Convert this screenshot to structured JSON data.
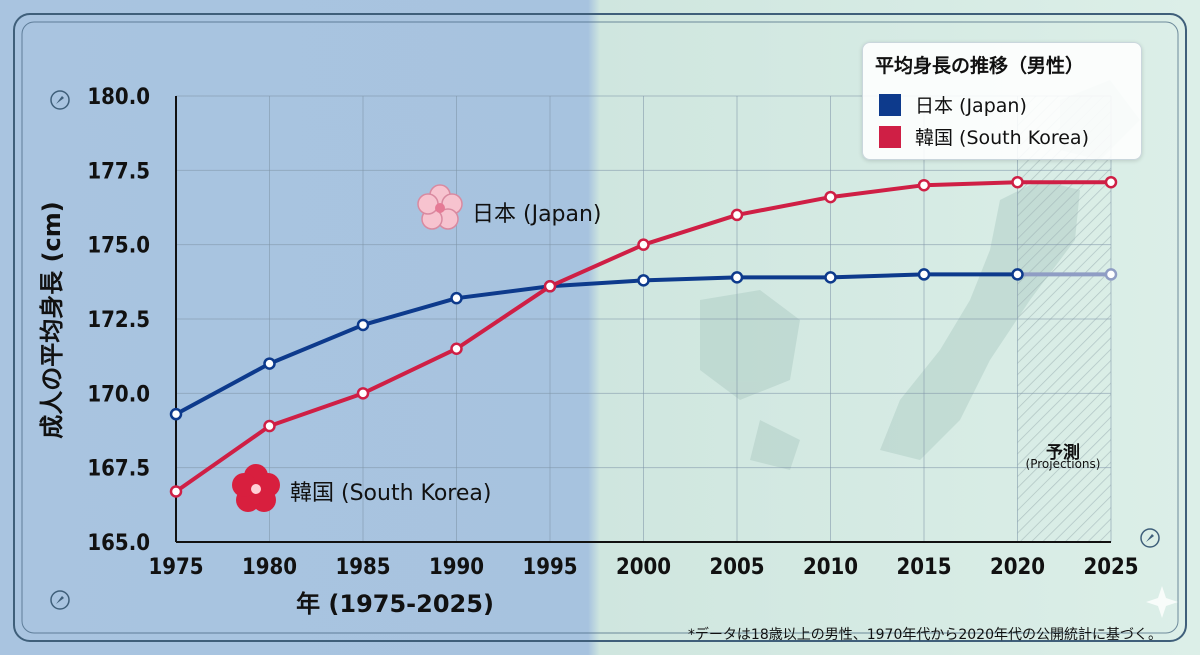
{
  "chart_data": {
    "type": "line",
    "title": "平均身長の推移（男性）",
    "xlabel": "年 (1975-2025)",
    "ylabel": "成人の平均身長 (cm)",
    "x": [
      1975,
      1980,
      1985,
      1990,
      1995,
      2000,
      2005,
      2010,
      2015,
      2020,
      2025
    ],
    "x_tick_labels": [
      "1975",
      "1980",
      "1985",
      "1990",
      "1995",
      "2000",
      "2005",
      "2010",
      "2015",
      "2020",
      "2025"
    ],
    "y_ticks": [
      165.0,
      167.5,
      170.0,
      172.5,
      175.0,
      177.5,
      180.0
    ],
    "y_tick_labels": [
      "165.0",
      "167.5",
      "170.0",
      "172.5",
      "175.0",
      "177.5",
      "180.0"
    ],
    "xlim": [
      1975,
      2025
    ],
    "ylim": [
      165.0,
      180.0
    ],
    "grid": true,
    "legend_position": "top-right",
    "projection_start": 2020,
    "series": [
      {
        "name": "日本 (Japan)",
        "color": "#0d3a8c",
        "projection_color": "#8f9dc4",
        "values": [
          169.3,
          171.0,
          172.3,
          173.2,
          173.6,
          173.8,
          173.9,
          173.9,
          174.0,
          174.0,
          174.0
        ]
      },
      {
        "name": "韓国 (South Korea)",
        "color": "#cf1f45",
        "values": [
          166.7,
          168.9,
          170.0,
          171.5,
          173.6,
          175.0,
          176.0,
          176.6,
          177.0,
          177.1,
          177.1
        ]
      }
    ],
    "annotations": {
      "projection_label": "予測",
      "projection_sublabel": "(Projections)",
      "japan_label": "日本 (Japan)",
      "korea_label": "韓国 (South Korea)"
    },
    "footnote": "*データは18歳以上の男性、1970年代から2020年代の公開統計に基づく。"
  }
}
